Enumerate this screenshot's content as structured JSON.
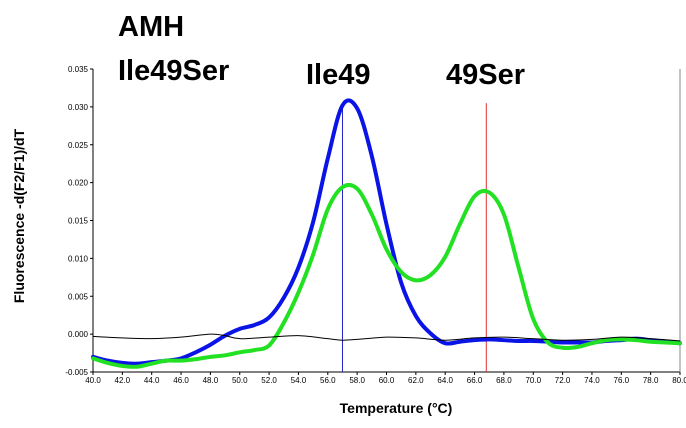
{
  "annotations": {
    "title_line1": "AMH",
    "title_line2": "Ile49Ser",
    "peak_left": "Ile49",
    "peak_right": "49Ser"
  },
  "chart_data": {
    "type": "line",
    "xlabel": "Temperature (°C)",
    "ylabel": "Fluorescence -d(F2/F1)/dT",
    "xlim": [
      40,
      80
    ],
    "ylim": [
      -0.005,
      0.035
    ],
    "x_ticks": [
      "40.0",
      "42.0",
      "44.0",
      "46.0",
      "48.0",
      "50.0",
      "52.0",
      "54.0",
      "56.0",
      "58.0",
      "60.0",
      "62.0",
      "64.0",
      "66.0",
      "68.0",
      "70.0",
      "72.0",
      "74.0",
      "76.0",
      "78.0",
      "80.0"
    ],
    "y_ticks": [
      "-0.005",
      "0.000",
      "0.005",
      "0.010",
      "0.015",
      "0.020",
      "0.025",
      "0.030",
      "0.035"
    ],
    "grid": false,
    "vertical_markers": [
      {
        "x": 57.0,
        "color": "#2222cc"
      },
      {
        "x": 66.8,
        "color": "#e03030"
      }
    ],
    "series": [
      {
        "color": "#0a14e6",
        "x": [
          40,
          41,
          42,
          43,
          44,
          45,
          46,
          47,
          48,
          49,
          50,
          51,
          52,
          53,
          54,
          55,
          56,
          57,
          58,
          59,
          60,
          61,
          62,
          63,
          64,
          65,
          66,
          67,
          68,
          69,
          70,
          71,
          72,
          73,
          74,
          75,
          76,
          77,
          78,
          79,
          80
        ],
        "y": [
          -0.003,
          -0.0035,
          -0.0038,
          -0.0039,
          -0.0037,
          -0.0035,
          -0.0032,
          -0.0024,
          -0.0014,
          -0.0002,
          0.0007,
          0.0012,
          0.0022,
          0.0048,
          0.0088,
          0.0148,
          0.0232,
          0.0302,
          0.0298,
          0.0235,
          0.0145,
          0.0068,
          0.0024,
          0.0001,
          -0.0012,
          -0.001,
          -0.0008,
          -0.0007,
          -0.0008,
          -0.0009,
          -0.0009,
          -0.001,
          -0.0011,
          -0.0011,
          -0.0011,
          -0.0009,
          -0.0008,
          -0.0006,
          -0.0008,
          -0.001,
          -0.0012
        ]
      },
      {
        "color": "#22e022",
        "x": [
          40,
          41,
          42,
          43,
          44,
          45,
          46,
          47,
          48,
          49,
          50,
          51,
          52,
          53,
          54,
          55,
          56,
          57,
          58,
          59,
          60,
          61,
          62,
          63,
          64,
          65,
          66,
          67,
          68,
          69,
          70,
          71,
          72,
          73,
          74,
          75,
          76,
          77,
          78,
          79,
          80
        ],
        "y": [
          -0.0032,
          -0.0038,
          -0.0042,
          -0.0043,
          -0.0039,
          -0.0035,
          -0.0035,
          -0.0033,
          -0.003,
          -0.0028,
          -0.0024,
          -0.0021,
          -0.0015,
          0.0015,
          0.0055,
          0.0105,
          0.0165,
          0.0194,
          0.0192,
          0.0158,
          0.0112,
          0.0082,
          0.0071,
          0.0078,
          0.0102,
          0.0145,
          0.0182,
          0.0187,
          0.0158,
          0.0088,
          0.002,
          -0.0011,
          -0.0018,
          -0.0017,
          -0.0012,
          -0.0008,
          -0.0007,
          -0.0008,
          -0.001,
          -0.0011,
          -0.0012
        ]
      },
      {
        "color": "#000000",
        "x": [
          40,
          42,
          44,
          46,
          48,
          49,
          50,
          52,
          54,
          56,
          57,
          58,
          60,
          62,
          64,
          66,
          68,
          70,
          72,
          74,
          76,
          78,
          80
        ],
        "y": [
          -0.0003,
          -0.0005,
          -0.0006,
          -0.0004,
          0.0,
          -0.0002,
          -0.0006,
          -0.0004,
          -0.0002,
          -0.0006,
          -0.0008,
          -0.0007,
          -0.0004,
          -0.0005,
          -0.0008,
          -0.0005,
          -0.0004,
          -0.0006,
          -0.0008,
          -0.0007,
          -0.0004,
          -0.0006,
          -0.0009
        ]
      }
    ]
  }
}
